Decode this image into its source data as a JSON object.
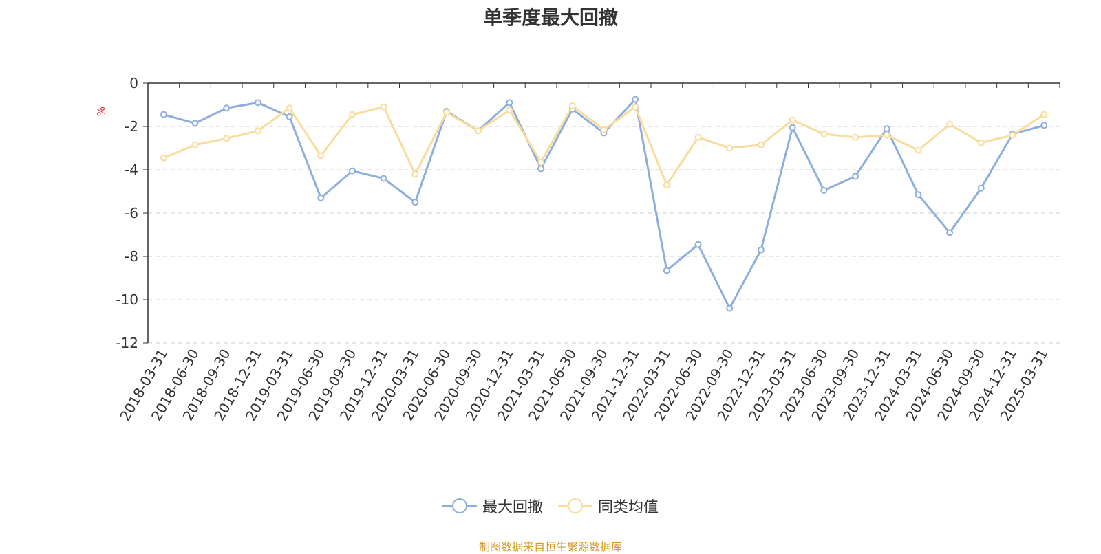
{
  "chart_data": {
    "type": "line",
    "title": "单季度最大回撤",
    "ylabel": "%",
    "ylim": [
      -12,
      0
    ],
    "yticks": [
      0,
      -2,
      -4,
      -6,
      -8,
      -10,
      -12
    ],
    "grid": true,
    "legend_position": "bottom",
    "categories": [
      "2018-03-31",
      "2018-06-30",
      "2018-09-30",
      "2018-12-31",
      "2019-03-31",
      "2019-06-30",
      "2019-09-30",
      "2019-12-31",
      "2020-03-31",
      "2020-06-30",
      "2020-09-30",
      "2020-12-31",
      "2021-03-31",
      "2021-06-30",
      "2021-09-30",
      "2021-12-31",
      "2022-03-31",
      "2022-06-30",
      "2022-09-30",
      "2022-12-31",
      "2023-03-31",
      "2023-06-30",
      "2023-09-30",
      "2023-12-31",
      "2024-03-31",
      "2024-06-30",
      "2024-09-30",
      "2024-12-31",
      "2025-03-31"
    ],
    "series": [
      {
        "name": "最大回撤",
        "color": "#8eaedb",
        "values": [
          -1.45,
          -1.85,
          -1.15,
          -0.9,
          -1.55,
          -5.3,
          -4.05,
          -4.4,
          -5.5,
          -1.3,
          -2.2,
          -0.9,
          -3.95,
          -1.2,
          -2.3,
          -0.75,
          -8.65,
          -7.45,
          -10.4,
          -7.7,
          -2.05,
          -4.95,
          -4.3,
          -2.1,
          -5.15,
          -6.9,
          -4.85,
          -2.35,
          -1.95
        ]
      },
      {
        "name": "同类均值",
        "color": "#f9dc9c",
        "values": [
          -3.45,
          -2.85,
          -2.55,
          -2.2,
          -1.15,
          -3.35,
          -1.45,
          -1.1,
          -4.2,
          -1.35,
          -2.2,
          -1.25,
          -3.65,
          -1.05,
          -2.15,
          -1.1,
          -4.7,
          -2.5,
          -3.0,
          -2.85,
          -1.7,
          -2.35,
          -2.5,
          -2.4,
          -3.1,
          -1.9,
          -2.75,
          -2.4,
          -1.45
        ]
      }
    ]
  },
  "legend": [
    {
      "label": "最大回撤",
      "color": "#8eaedb"
    },
    {
      "label": "同类均值",
      "color": "#f9dc9c"
    }
  ],
  "source_note": "制图数据来自恒生聚源数据库",
  "colors": {
    "ylabel": "#e03030",
    "axis": "#333333",
    "grid": "#cccccc",
    "source": "#d49a2e"
  }
}
